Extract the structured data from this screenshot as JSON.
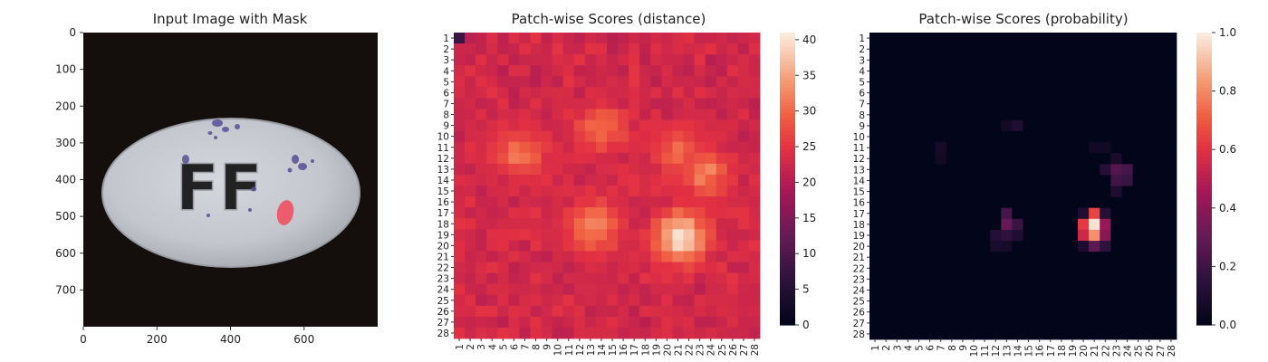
{
  "panels": [
    {
      "title": "Input Image with Mask",
      "x_ticks": [
        "0",
        "200",
        "400",
        "600"
      ],
      "y_ticks": [
        "0",
        "100",
        "200",
        "300",
        "400",
        "500",
        "600",
        "700"
      ]
    },
    {
      "title": "Patch-wise Scores (distance)",
      "colorbar_ticks": [
        "0",
        "5",
        "10",
        "15",
        "20",
        "25",
        "30",
        "35",
        "40"
      ]
    },
    {
      "title": "Patch-wise Scores (probability)",
      "colorbar_ticks": [
        "0.0",
        "0.2",
        "0.4",
        "0.6",
        "0.8",
        "1.0"
      ]
    }
  ],
  "image": {
    "pill_text": "FF"
  },
  "chart_data": [
    {
      "type": "image",
      "title": "Input Image with Mask",
      "xlim": [
        0,
        800
      ],
      "ylim": [
        800,
        0
      ],
      "x_ticks": [
        0,
        200,
        400,
        600
      ],
      "y_ticks": [
        0,
        100,
        200,
        300,
        400,
        500,
        600,
        700
      ],
      "colors": {
        "background": "#140e0c",
        "pill": "#c7cbd0",
        "mask": "#f05060",
        "stains": "#5a4e98"
      }
    },
    {
      "type": "heatmap",
      "title": "Patch-wise Scores (distance)",
      "rows": [
        "1",
        "2",
        "3",
        "4",
        "5",
        "6",
        "7",
        "8",
        "9",
        "10",
        "11",
        "12",
        "13",
        "14",
        "15",
        "16",
        "17",
        "18",
        "19",
        "20",
        "21",
        "22",
        "23",
        "24",
        "25",
        "26",
        "27",
        "28"
      ],
      "cols": [
        "1",
        "2",
        "3",
        "4",
        "5",
        "6",
        "7",
        "8",
        "9",
        "10",
        "11",
        "12",
        "13",
        "14",
        "15",
        "16",
        "17",
        "18",
        "19",
        "20",
        "21",
        "22",
        "23",
        "24",
        "25",
        "26",
        "27",
        "28"
      ],
      "vmin": 0,
      "vmax": 41,
      "colormap": "rocket",
      "base": 22,
      "hotspots": [
        {
          "row": 19.2,
          "col": 21.3,
          "peak": 41
        },
        {
          "row": 18.2,
          "col": 13.5,
          "peak": 33
        },
        {
          "row": 13.3,
          "col": 23.5,
          "peak": 32
        },
        {
          "row": 9.3,
          "col": 14.0,
          "peak": 31
        },
        {
          "row": 11.5,
          "col": 6.5,
          "peak": 31
        },
        {
          "row": 11.5,
          "col": 21.0,
          "peak": 30
        }
      ]
    },
    {
      "type": "heatmap",
      "title": "Patch-wise Scores (probability)",
      "rows": [
        "1",
        "2",
        "3",
        "4",
        "5",
        "6",
        "7",
        "8",
        "9",
        "10",
        "11",
        "12",
        "13",
        "14",
        "15",
        "16",
        "17",
        "18",
        "19",
        "20",
        "21",
        "22",
        "23",
        "24",
        "25",
        "26",
        "27",
        "28"
      ],
      "cols": [
        "1",
        "2",
        "3",
        "4",
        "5",
        "6",
        "7",
        "8",
        "9",
        "10",
        "11",
        "12",
        "13",
        "14",
        "15",
        "16",
        "17",
        "18",
        "19",
        "20",
        "21",
        "22",
        "23",
        "24",
        "25",
        "26",
        "27",
        "28"
      ],
      "vmin": 0.0,
      "vmax": 1.0,
      "colormap": "rocket",
      "base": 0.0,
      "cells": [
        {
          "row": 18,
          "col": 21,
          "value": 0.98
        },
        {
          "row": 19,
          "col": 21,
          "value": 0.82
        },
        {
          "row": 17,
          "col": 21,
          "value": 0.65
        },
        {
          "row": 18,
          "col": 20,
          "value": 0.62
        },
        {
          "row": 19,
          "col": 20,
          "value": 0.55
        },
        {
          "row": 18,
          "col": 22,
          "value": 0.42
        },
        {
          "row": 19,
          "col": 22,
          "value": 0.38
        },
        {
          "row": 20,
          "col": 21,
          "value": 0.28
        },
        {
          "row": 20,
          "col": 22,
          "value": 0.15
        },
        {
          "row": 20,
          "col": 20,
          "value": 0.09
        },
        {
          "row": 17,
          "col": 22,
          "value": 0.12
        },
        {
          "row": 17,
          "col": 20,
          "value": 0.1
        },
        {
          "row": 18,
          "col": 13,
          "value": 0.3
        },
        {
          "row": 17,
          "col": 13,
          "value": 0.22
        },
        {
          "row": 18,
          "col": 14,
          "value": 0.18
        },
        {
          "row": 19,
          "col": 13,
          "value": 0.15
        },
        {
          "row": 19,
          "col": 12,
          "value": 0.12
        },
        {
          "row": 19,
          "col": 14,
          "value": 0.1
        },
        {
          "row": 20,
          "col": 12,
          "value": 0.08
        },
        {
          "row": 20,
          "col": 13,
          "value": 0.07
        },
        {
          "row": 13,
          "col": 23,
          "value": 0.25
        },
        {
          "row": 13,
          "col": 24,
          "value": 0.22
        },
        {
          "row": 14,
          "col": 23,
          "value": 0.2
        },
        {
          "row": 14,
          "col": 24,
          "value": 0.18
        },
        {
          "row": 13,
          "col": 22,
          "value": 0.12
        },
        {
          "row": 15,
          "col": 23,
          "value": 0.1
        },
        {
          "row": 12,
          "col": 23,
          "value": 0.08
        },
        {
          "row": 9,
          "col": 14,
          "value": 0.1
        },
        {
          "row": 9,
          "col": 13,
          "value": 0.06
        },
        {
          "row": 11,
          "col": 7,
          "value": 0.07
        },
        {
          "row": 12,
          "col": 7,
          "value": 0.06
        },
        {
          "row": 11,
          "col": 21,
          "value": 0.05
        },
        {
          "row": 11,
          "col": 22,
          "value": 0.05
        }
      ]
    }
  ]
}
